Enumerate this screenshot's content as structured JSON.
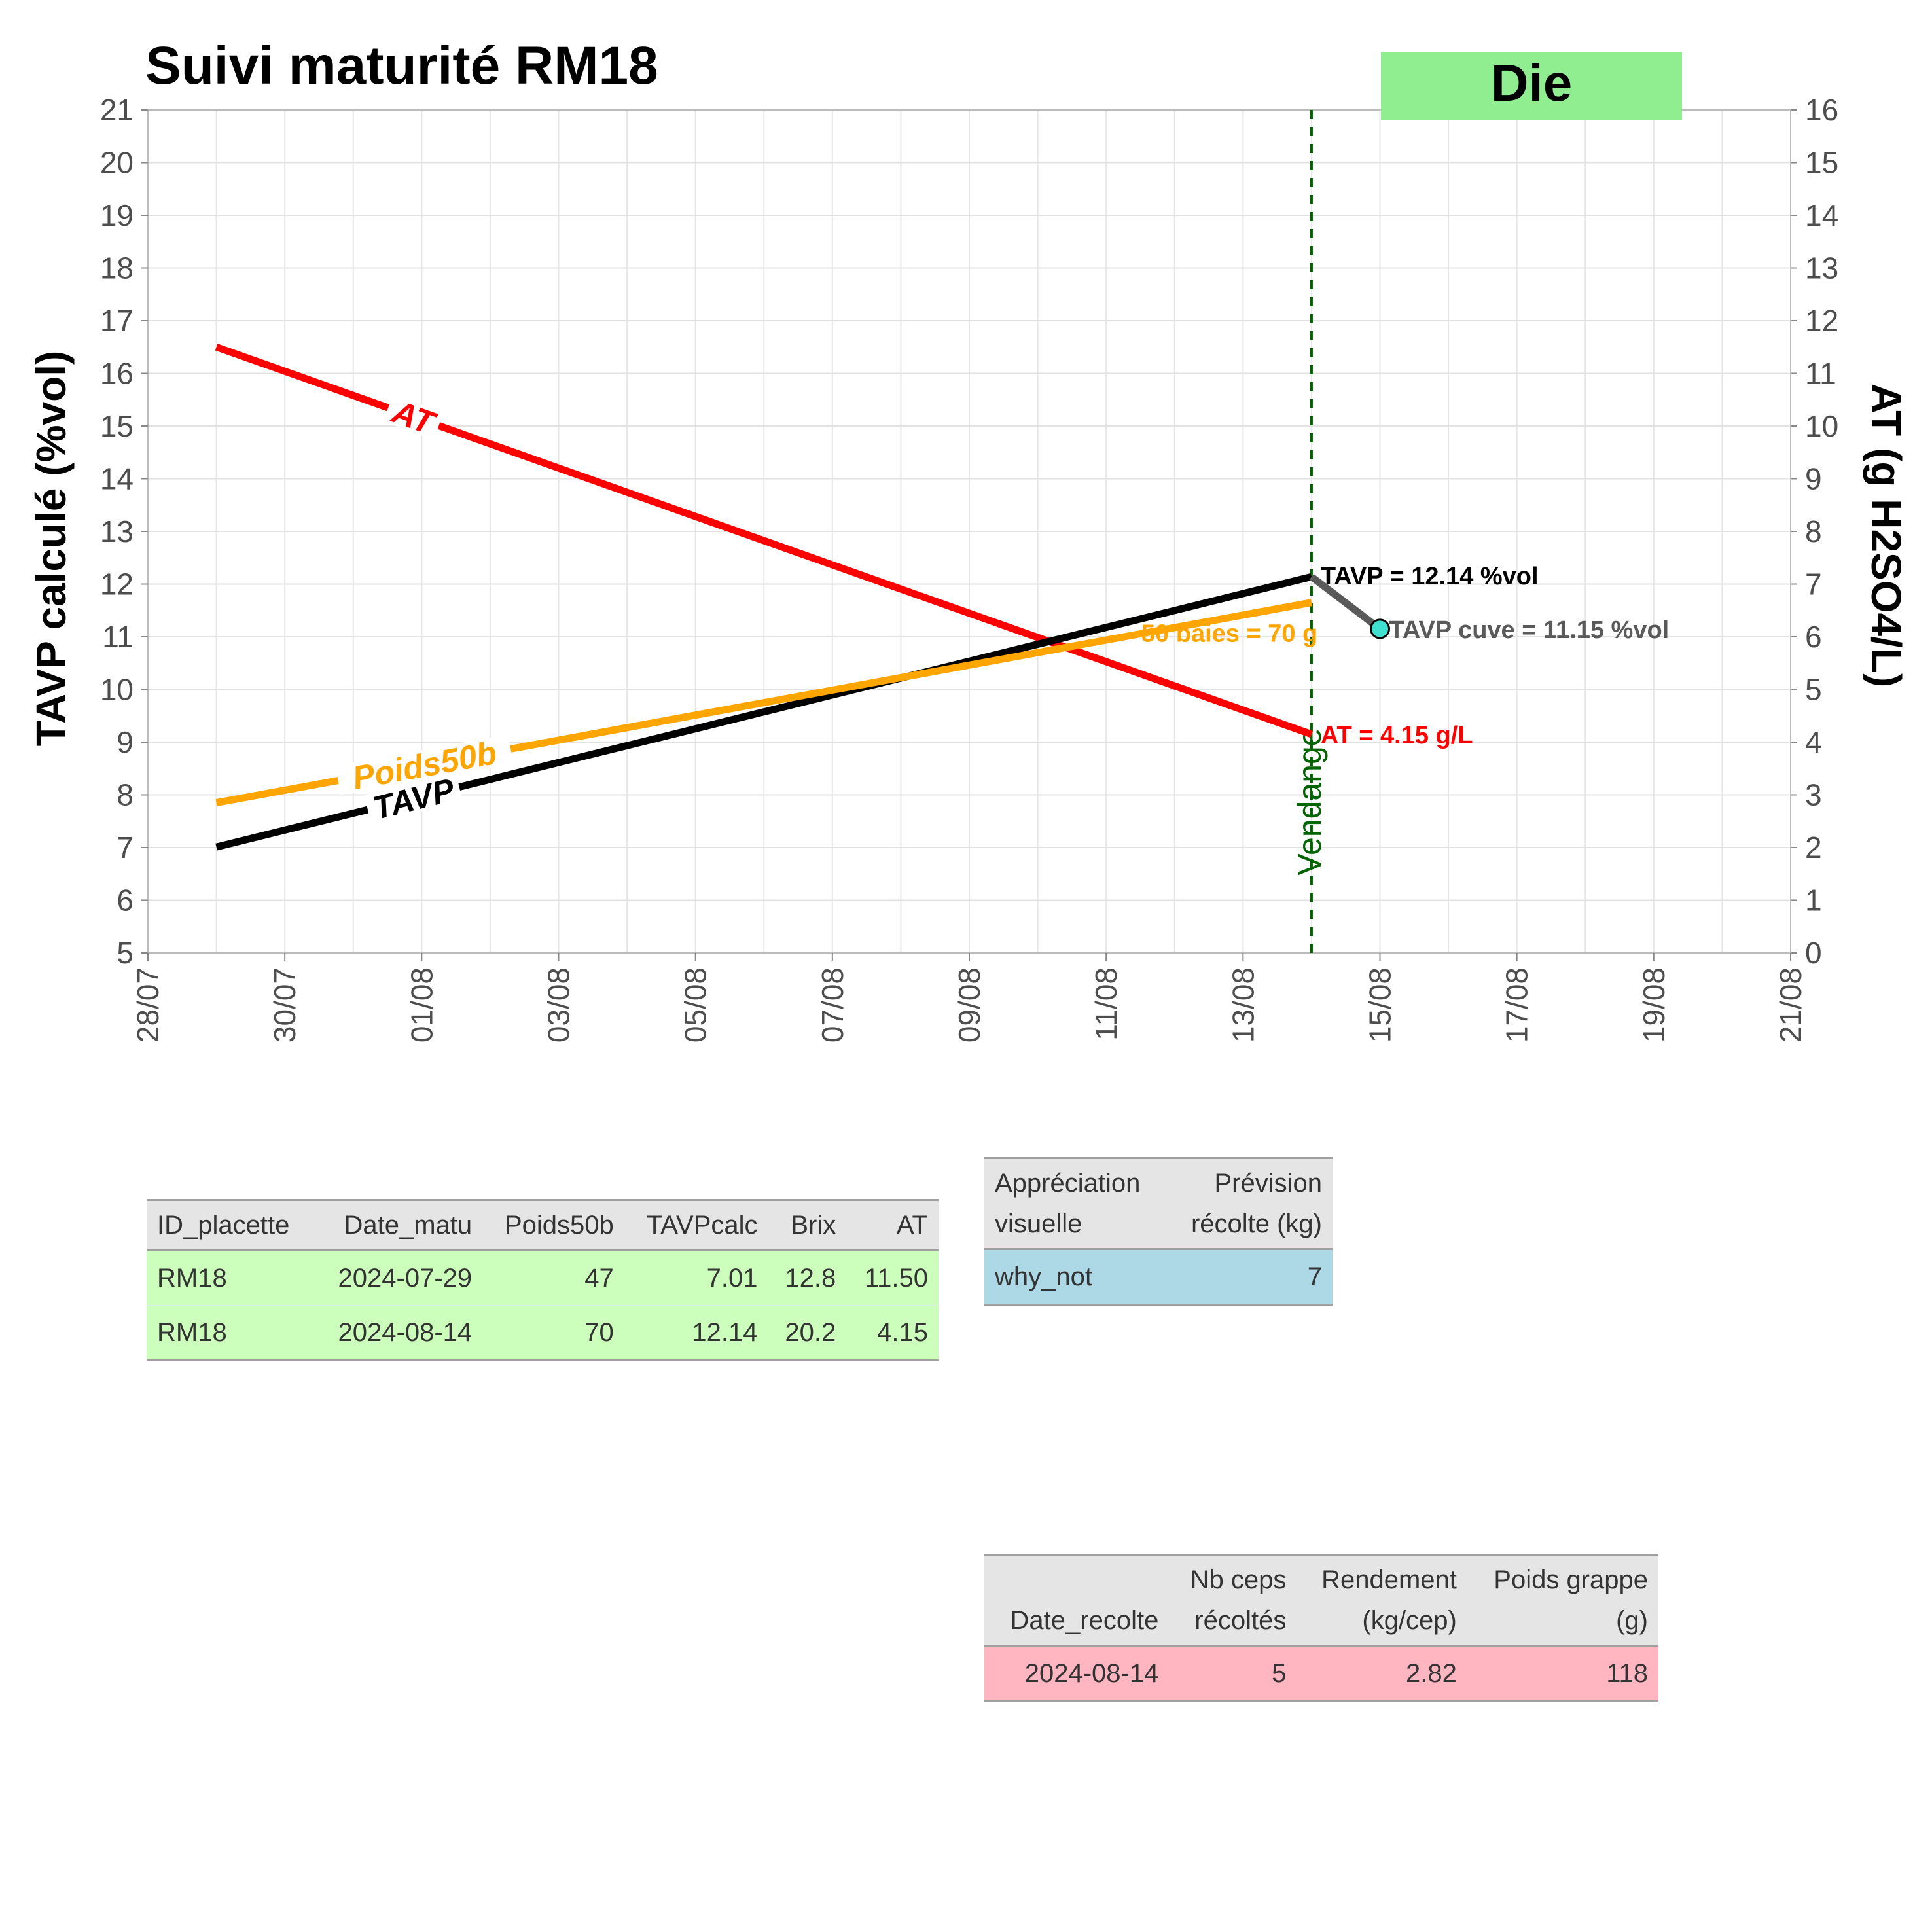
{
  "chart_data": {
    "type": "line",
    "title": "Suivi maturité  RM18",
    "badge": {
      "label": "Die",
      "color": "#90ee90"
    },
    "x_range": [
      "2024-07-28",
      "2024-08-21"
    ],
    "x_ticks": [
      "28/07",
      "30/07",
      "01/08",
      "03/08",
      "05/08",
      "07/08",
      "09/08",
      "11/08",
      "13/08",
      "15/08",
      "17/08",
      "19/08",
      "21/08"
    ],
    "ylabel": "TAVP calculé (%vol)",
    "ylim": [
      5,
      21
    ],
    "y2label": "AT (g H2SO4/L)",
    "y2lim": [
      0,
      16
    ],
    "grid": true,
    "series": [
      {
        "name": "AT",
        "axis": "right",
        "color": "#ff0000",
        "x": [
          "2024-07-29",
          "2024-08-14"
        ],
        "y": [
          11.5,
          4.15
        ],
        "end_label": "AT = 4.15 g/L"
      },
      {
        "name": "TAVP",
        "axis": "left",
        "color": "#000000",
        "x": [
          "2024-07-29",
          "2024-08-14"
        ],
        "y": [
          7.01,
          12.14
        ],
        "end_label": "TAVP = 12.14 %vol"
      },
      {
        "name": "Poids50b",
        "axis": "left",
        "color": "#ffa500",
        "x": [
          "2024-07-29",
          "2024-08-14"
        ],
        "y": [
          7.85,
          11.65
        ],
        "end_label": "50 baies = 70 g"
      }
    ],
    "cuve": {
      "color": "#5a5a5a",
      "point_color": "#40e0d0",
      "x": [
        "2024-08-14",
        "2024-08-15"
      ],
      "y": [
        12.14,
        11.15
      ],
      "label": "TAVP cuve = 11.15 %vol"
    },
    "vendange": {
      "x": "2024-08-14",
      "label": "Vendange",
      "color": "#006400"
    }
  },
  "table_matu": {
    "headers": [
      "ID_placette",
      "Date_matu",
      "Poids50b",
      "TAVPcalc",
      "Brix",
      "AT"
    ],
    "rows": [
      [
        "RM18",
        "2024-07-29",
        "47",
        "7.01",
        "12.8",
        "11.50"
      ],
      [
        "RM18",
        "2024-08-14",
        "70",
        "12.14",
        "20.2",
        "4.15"
      ]
    ],
    "row_color": "#ccffbb"
  },
  "table_visuel": {
    "headers": [
      [
        "Appréciation",
        "visuelle"
      ],
      [
        "Prévision",
        "récolte (kg)"
      ]
    ],
    "rows": [
      [
        "why_not",
        "7"
      ]
    ],
    "row_color": "#add8e6"
  },
  "table_recolte": {
    "headers": [
      [
        "",
        "Date_recolte"
      ],
      [
        "Nb ceps",
        "récoltés"
      ],
      [
        "Rendement",
        "(kg/cep)"
      ],
      [
        "Poids grappe",
        "(g)"
      ]
    ],
    "rows": [
      [
        "2024-08-14",
        "5",
        "2.82",
        "118"
      ]
    ],
    "row_color": "#ffb6c1"
  }
}
